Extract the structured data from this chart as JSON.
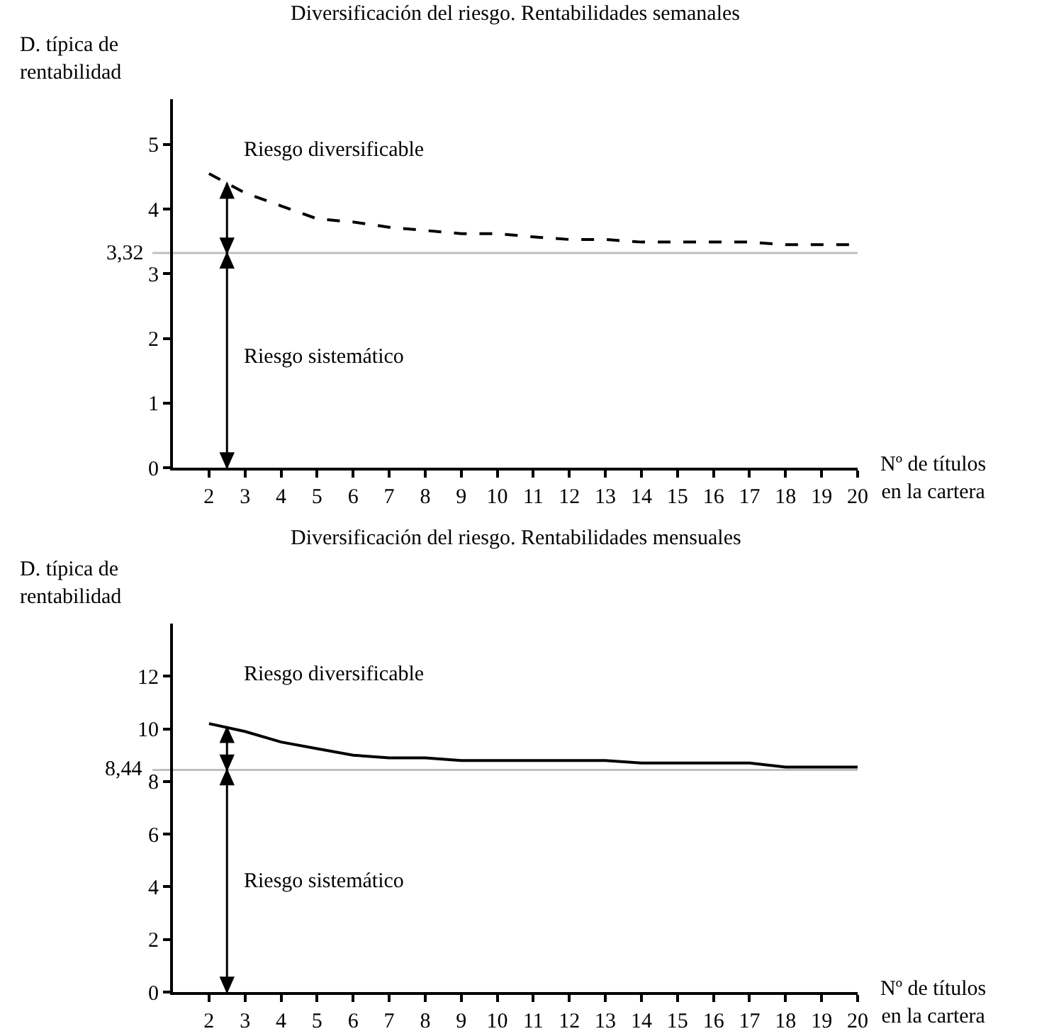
{
  "chart_data": [
    {
      "type": "line",
      "title": "Diversificación del riesgo. Rentabilidades semanales",
      "xlabel": "Nº de títulos\nen la cartera",
      "ylabel": "D. típica de\nrentabilidad",
      "x": [
        2,
        3,
        4,
        5,
        6,
        7,
        8,
        9,
        10,
        11,
        12,
        13,
        14,
        15,
        16,
        17,
        18,
        19,
        20
      ],
      "series": [
        {
          "color": "#000000",
          "line_style": "dashed",
          "values": [
            4.55,
            4.25,
            4.05,
            3.85,
            3.8,
            3.72,
            3.67,
            3.62,
            3.62,
            3.57,
            3.53,
            3.53,
            3.49,
            3.49,
            3.49,
            3.49,
            3.45,
            3.45,
            3.45
          ]
        }
      ],
      "xlim": [
        1,
        20
      ],
      "xticks": [
        2,
        3,
        4,
        5,
        6,
        7,
        8,
        9,
        10,
        11,
        12,
        13,
        14,
        15,
        16,
        17,
        18,
        19,
        20
      ],
      "ylim": [
        0,
        5.7
      ],
      "yticks": [
        0,
        1,
        2,
        3,
        4,
        5
      ],
      "ref_lines": [
        {
          "axis": "y",
          "value": 3.32,
          "label": "3,32",
          "color": "#c0c0c0"
        }
      ],
      "annotations": [
        "Riesgo diversificable",
        "Riesgo sistemático"
      ],
      "grid": false,
      "marker": "none"
    },
    {
      "type": "line",
      "title": "Diversificación del riesgo. Rentabilidades mensuales",
      "xlabel": "Nº de títulos\nen la cartera",
      "ylabel": "D. típica de\nrentabilidad",
      "x": [
        2,
        3,
        4,
        5,
        6,
        7,
        8,
        9,
        10,
        11,
        12,
        13,
        14,
        15,
        16,
        17,
        18,
        19,
        20
      ],
      "series": [
        {
          "color": "#000000",
          "line_style": "solid",
          "values": [
            10.2,
            9.9,
            9.5,
            9.25,
            9.0,
            8.9,
            8.9,
            8.8,
            8.8,
            8.8,
            8.8,
            8.8,
            8.7,
            8.7,
            8.7,
            8.7,
            8.55,
            8.55,
            8.55
          ]
        }
      ],
      "xlim": [
        1,
        20
      ],
      "xticks": [
        2,
        3,
        4,
        5,
        6,
        7,
        8,
        9,
        10,
        11,
        12,
        13,
        14,
        15,
        16,
        17,
        18,
        19,
        20
      ],
      "ylim": [
        0,
        14
      ],
      "yticks": [
        0,
        2,
        4,
        6,
        8,
        10,
        12
      ],
      "ref_lines": [
        {
          "axis": "y",
          "value": 8.44,
          "label": "8,44",
          "color": "#c0c0c0"
        }
      ],
      "annotations": [
        "Riesgo diversificable",
        "Riesgo sistemático"
      ],
      "grid": false,
      "marker": "none"
    }
  ]
}
